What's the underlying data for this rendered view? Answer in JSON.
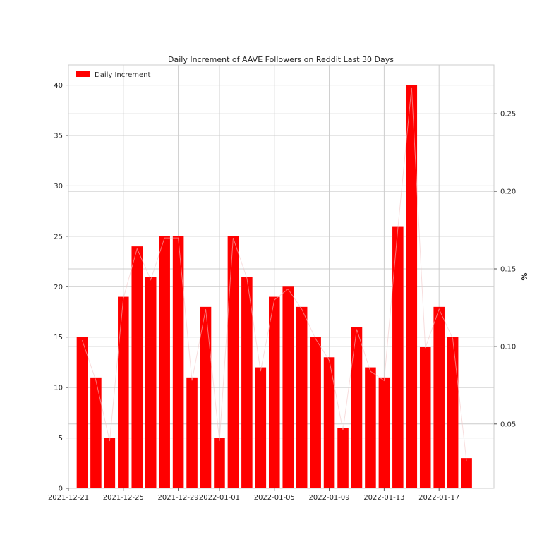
{
  "chart_data": {
    "type": "bar",
    "title": "Daily Increment of AAVE Followers on Reddit Last 30 Days",
    "xlabel": "",
    "ylabel": "",
    "ylabel_right": "%",
    "legend": {
      "entries": [
        "Daily Increment"
      ],
      "placement": "top-left"
    },
    "grid": true,
    "x": [
      "2021-12-22",
      "2021-12-23",
      "2021-12-24",
      "2021-12-25",
      "2021-12-26",
      "2021-12-27",
      "2021-12-28",
      "2021-12-29",
      "2021-12-30",
      "2021-12-31",
      "2022-01-01",
      "2022-01-02",
      "2022-01-03",
      "2022-01-04",
      "2022-01-05",
      "2022-01-06",
      "2022-01-07",
      "2022-01-08",
      "2022-01-09",
      "2022-01-10",
      "2022-01-11",
      "2022-01-12",
      "2022-01-13",
      "2022-01-14",
      "2022-01-15",
      "2022-01-16",
      "2022-01-17",
      "2022-01-18",
      "2022-01-19",
      "2022-01-20"
    ],
    "series": [
      {
        "name": "Daily Increment",
        "color": "#ff0000",
        "values": [
          15,
          11,
          5,
          19,
          24,
          21,
          25,
          25,
          11,
          18,
          5,
          25,
          21,
          12,
          19,
          20,
          18,
          15,
          13,
          6,
          16,
          12,
          11,
          26,
          40,
          14,
          18,
          15,
          3,
          null
        ]
      }
    ],
    "secondary_series": {
      "axis": "right",
      "color": "#f4c6c6",
      "values": [
        0.104,
        0.078,
        0.039,
        0.131,
        0.163,
        0.143,
        0.17,
        0.17,
        0.078,
        0.124,
        0.039,
        0.17,
        0.144,
        0.084,
        0.13,
        0.137,
        0.124,
        0.105,
        0.091,
        0.046,
        0.111,
        0.084,
        0.078,
        0.176,
        0.267,
        0.099,
        0.124,
        0.105,
        0.026,
        null
      ]
    },
    "xlim": [
      "2021-12-21",
      "2022-01-21"
    ],
    "ylim": [
      0,
      42
    ],
    "ylim_right": [
      0.0085,
      0.2815
    ],
    "xticks": [
      "2021-12-21",
      "2021-12-25",
      "2021-12-29",
      "2022-01-01",
      "2022-01-05",
      "2022-01-09",
      "2022-01-13",
      "2022-01-17"
    ],
    "yticks": [
      0,
      5,
      10,
      15,
      20,
      25,
      30,
      35,
      40
    ],
    "yticks_right": [
      0.05,
      0.1,
      0.15,
      0.2,
      0.25
    ],
    "yticks_right_labels": [
      "0.05",
      "0.10",
      "0.15",
      "0.20",
      "0.25"
    ]
  }
}
